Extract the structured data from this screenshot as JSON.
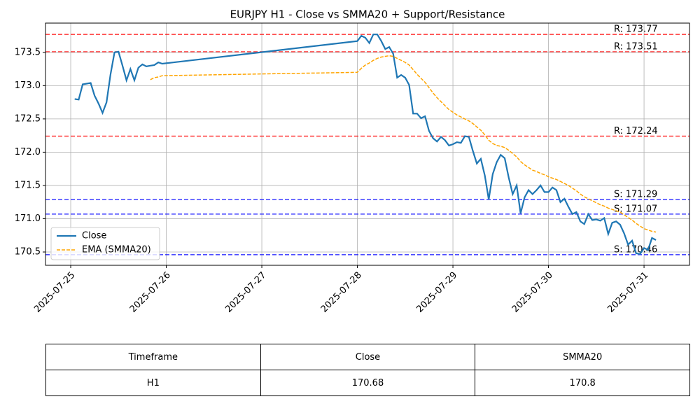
{
  "chart_data": {
    "type": "line",
    "title": "EURJPY H1 - Close vs SMMA20 + Support/Resistance",
    "x": [
      "2025-07-25 01:00",
      "2025-07-25 02:00",
      "2025-07-25 03:00",
      "2025-07-25 04:00",
      "2025-07-25 05:00",
      "2025-07-25 06:00",
      "2025-07-25 07:00",
      "2025-07-25 08:00",
      "2025-07-25 09:00",
      "2025-07-25 10:00",
      "2025-07-25 11:00",
      "2025-07-25 12:00",
      "2025-07-25 13:00",
      "2025-07-25 14:00",
      "2025-07-25 15:00",
      "2025-07-25 16:00",
      "2025-07-25 17:00",
      "2025-07-25 18:00",
      "2025-07-25 19:00",
      "2025-07-25 20:00",
      "2025-07-25 21:00",
      "2025-07-25 22:00",
      "2025-07-25 23:00",
      "2025-07-28 00:00",
      "2025-07-28 01:00",
      "2025-07-28 02:00",
      "2025-07-28 03:00",
      "2025-07-28 04:00",
      "2025-07-28 05:00",
      "2025-07-28 06:00",
      "2025-07-28 07:00",
      "2025-07-28 08:00",
      "2025-07-28 09:00",
      "2025-07-28 10:00",
      "2025-07-28 11:00",
      "2025-07-28 12:00",
      "2025-07-28 13:00",
      "2025-07-28 14:00",
      "2025-07-28 15:00",
      "2025-07-28 16:00",
      "2025-07-28 17:00",
      "2025-07-28 18:00",
      "2025-07-28 19:00",
      "2025-07-28 20:00",
      "2025-07-28 21:00",
      "2025-07-28 22:00",
      "2025-07-28 23:00",
      "2025-07-29 00:00",
      "2025-07-29 01:00",
      "2025-07-29 02:00",
      "2025-07-29 03:00",
      "2025-07-29 04:00",
      "2025-07-29 05:00",
      "2025-07-29 06:00",
      "2025-07-29 07:00",
      "2025-07-29 08:00",
      "2025-07-29 09:00",
      "2025-07-29 10:00",
      "2025-07-29 11:00",
      "2025-07-29 12:00",
      "2025-07-29 13:00",
      "2025-07-29 14:00",
      "2025-07-29 15:00",
      "2025-07-29 16:00",
      "2025-07-29 17:00",
      "2025-07-29 18:00",
      "2025-07-29 19:00",
      "2025-07-29 20:00",
      "2025-07-29 21:00",
      "2025-07-29 22:00",
      "2025-07-29 23:00",
      "2025-07-30 00:00",
      "2025-07-30 01:00",
      "2025-07-30 02:00",
      "2025-07-30 03:00",
      "2025-07-30 04:00",
      "2025-07-30 05:00",
      "2025-07-30 06:00",
      "2025-07-30 07:00",
      "2025-07-30 08:00",
      "2025-07-30 09:00",
      "2025-07-30 10:00",
      "2025-07-30 11:00",
      "2025-07-30 12:00",
      "2025-07-30 13:00",
      "2025-07-30 14:00",
      "2025-07-30 15:00",
      "2025-07-30 16:00",
      "2025-07-30 17:00",
      "2025-07-30 18:00",
      "2025-07-30 19:00",
      "2025-07-30 20:00",
      "2025-07-30 21:00",
      "2025-07-30 22:00",
      "2025-07-30 23:00",
      "2025-07-31 00:00",
      "2025-07-31 01:00",
      "2025-07-31 02:00",
      "2025-07-31 03:00"
    ],
    "series": [
      {
        "name": "Close",
        "color": "#1f77b4",
        "dash": false,
        "values": [
          172.8,
          172.79,
          173.02,
          173.03,
          173.04,
          172.85,
          172.73,
          172.59,
          172.75,
          173.17,
          173.5,
          173.51,
          173.3,
          173.08,
          173.25,
          173.08,
          173.27,
          173.32,
          173.29,
          173.3,
          173.31,
          173.35,
          173.33,
          173.67,
          173.75,
          173.72,
          173.64,
          173.77,
          173.77,
          173.67,
          173.55,
          173.58,
          173.48,
          173.12,
          173.16,
          173.12,
          173.01,
          172.58,
          172.58,
          172.51,
          172.54,
          172.32,
          172.21,
          172.16,
          172.23,
          172.18,
          172.1,
          172.12,
          172.15,
          172.14,
          172.24,
          172.23,
          172.02,
          171.83,
          171.9,
          171.65,
          171.29,
          171.67,
          171.85,
          171.96,
          171.91,
          171.62,
          171.37,
          171.5,
          171.08,
          171.32,
          171.43,
          171.37,
          171.43,
          171.5,
          171.4,
          171.4,
          171.47,
          171.43,
          171.25,
          171.3,
          171.18,
          171.07,
          171.1,
          170.96,
          170.92,
          171.07,
          170.98,
          170.99,
          170.97,
          171.01,
          170.77,
          170.94,
          170.96,
          170.91,
          170.78,
          170.61,
          170.67,
          170.48,
          170.47,
          170.56,
          170.53,
          170.71,
          170.68
        ]
      },
      {
        "name": "EMA (SMMA20)",
        "color": "#ffa500",
        "dash": true,
        "values": [
          null,
          null,
          null,
          null,
          null,
          null,
          null,
          null,
          null,
          null,
          null,
          null,
          null,
          null,
          null,
          null,
          null,
          null,
          null,
          173.09,
          173.12,
          173.13,
          173.15,
          173.2,
          173.26,
          173.31,
          173.34,
          173.38,
          173.41,
          173.43,
          173.44,
          173.45,
          173.44,
          173.41,
          173.38,
          173.35,
          173.31,
          173.24,
          173.17,
          173.11,
          173.05,
          172.97,
          172.89,
          172.82,
          172.76,
          172.7,
          172.64,
          172.6,
          172.56,
          172.53,
          172.5,
          172.47,
          172.43,
          172.38,
          172.33,
          172.26,
          172.18,
          172.13,
          172.1,
          172.09,
          172.07,
          172.03,
          171.98,
          171.93,
          171.86,
          171.81,
          171.77,
          171.73,
          171.71,
          171.68,
          171.66,
          171.63,
          171.61,
          171.59,
          171.56,
          171.53,
          171.5,
          171.46,
          171.42,
          171.37,
          171.33,
          171.3,
          171.27,
          171.24,
          171.21,
          171.19,
          171.16,
          171.14,
          171.12,
          171.1,
          171.06,
          171.02,
          170.98,
          170.93,
          170.89,
          170.85,
          170.83,
          170.81,
          170.8
        ]
      }
    ],
    "levels": [
      {
        "value": 173.77,
        "label": "R: 173.77",
        "color": "#ff0000"
      },
      {
        "value": 173.51,
        "label": "R: 173.51",
        "color": "#ff0000"
      },
      {
        "value": 172.24,
        "label": "R: 172.24",
        "color": "#ff0000"
      },
      {
        "value": 171.29,
        "label": "S: 171.29",
        "color": "#0000ff"
      },
      {
        "value": 171.07,
        "label": "S: 171.07",
        "color": "#0000ff"
      },
      {
        "value": 170.46,
        "label": "S: 170.46",
        "color": "#0000ff"
      }
    ],
    "xlim": [
      "2025-07-24 17:40",
      "2025-07-31 11:25"
    ],
    "xticks": [
      "2025-07-25",
      "2025-07-26",
      "2025-07-27",
      "2025-07-28",
      "2025-07-29",
      "2025-07-30",
      "2025-07-31"
    ],
    "ylim": [
      170.3,
      173.94
    ],
    "yticks": [
      170.5,
      {
        "value": 171,
        "label": "171.0"
      },
      171.5,
      {
        "value": 172,
        "label": "172.0"
      },
      172.5,
      {
        "value": 173,
        "label": "173.0"
      },
      173.5
    ],
    "grid": true,
    "legend": "lower left"
  },
  "table": {
    "header": [
      "Timeframe",
      "Close",
      "SMMA20"
    ],
    "rows": [
      [
        "H1",
        170.68,
        170.8
      ]
    ]
  }
}
